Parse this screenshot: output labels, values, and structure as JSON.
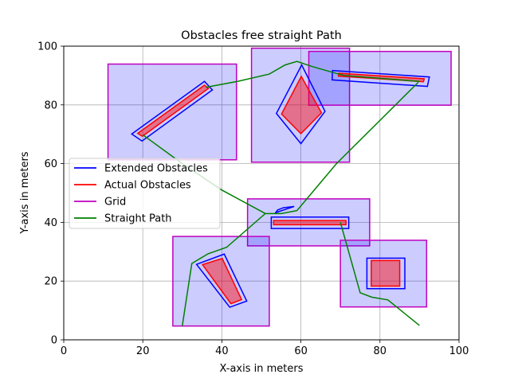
{
  "chart_data": {
    "type": "line",
    "title": "Obstacles free straight Path",
    "xlabel": "X-axis in meters",
    "ylabel": "Y-axis in meters",
    "xlim": [
      0,
      100
    ],
    "ylim": [
      0,
      100
    ],
    "xticks": [
      0,
      20,
      40,
      60,
      80,
      100
    ],
    "yticks": [
      0,
      20,
      40,
      60,
      80,
      100
    ],
    "grid": true,
    "legend_position": "center-left",
    "colors": {
      "extended": "#0000ff",
      "actual": "#ff0000",
      "grid": "#bf00bf",
      "path": "#008000",
      "grid_fill": "#0000ff",
      "actual_fill": "#ff0000"
    },
    "legend": [
      {
        "label": "Extended Obstacles",
        "color": "#0000ff"
      },
      {
        "label": "Actual Obstacles",
        "color": "#ff0000"
      },
      {
        "label": "Grid",
        "color": "#bf00bf"
      },
      {
        "label": "Straight Path",
        "color": "#008000"
      }
    ],
    "grid_cells": [
      {
        "x": [
          11.2,
          43.7
        ],
        "y": [
          61.3,
          93.9
        ]
      },
      {
        "x": [
          47.5,
          72.3
        ],
        "y": [
          60.5,
          99.3
        ]
      },
      {
        "x": [
          62.0,
          98.0
        ],
        "y": [
          79.9,
          98.2
        ]
      },
      {
        "x": [
          46.5,
          77.4
        ],
        "y": [
          32.0,
          48.0
        ]
      },
      {
        "x": [
          27.6,
          52.0
        ],
        "y": [
          4.7,
          35.2
        ]
      },
      {
        "x": [
          70.0,
          91.8
        ],
        "y": [
          11.2,
          33.9
        ]
      }
    ],
    "extended_obstacles": [
      [
        [
          17.2,
          70.1
        ],
        [
          35.6,
          88.0
        ],
        [
          37.6,
          85.1
        ],
        [
          19.8,
          67.7
        ]
      ],
      [
        [
          58.3,
          45.4
        ],
        [
          53.6,
          43.3
        ],
        [
          54.1,
          44.2
        ],
        [
          55.6,
          45.0
        ]
      ],
      [
        [
          60.2,
          93.6
        ],
        [
          53.8,
          77.1
        ],
        [
          60.0,
          66.8
        ],
        [
          66.1,
          77.8
        ]
      ],
      [
        [
          68.0,
          91.7
        ],
        [
          92.5,
          89.5
        ],
        [
          92.0,
          86.3
        ],
        [
          67.9,
          88.5
        ]
      ],
      [
        [
          52.5,
          41.8
        ],
        [
          72.1,
          41.8
        ],
        [
          72.1,
          37.9
        ],
        [
          52.5,
          37.9
        ]
      ],
      [
        [
          33.6,
          25.7
        ],
        [
          40.6,
          29.2
        ],
        [
          46.3,
          13.2
        ],
        [
          42.0,
          11.1
        ]
      ],
      [
        [
          76.7,
          27.8
        ],
        [
          86.3,
          27.8
        ],
        [
          86.3,
          17.4
        ],
        [
          76.7,
          17.4
        ]
      ]
    ],
    "actual_obstacles": [
      [
        [
          18.7,
          70.3
        ],
        [
          35.6,
          86.7
        ],
        [
          36.6,
          85.6
        ],
        [
          19.9,
          69.3
        ]
      ],
      [
        [
          60.1,
          89.7
        ],
        [
          55.1,
          76.9
        ],
        [
          60.0,
          70.2
        ],
        [
          65.2,
          77.3
        ]
      ],
      [
        [
          69.6,
          90.8
        ],
        [
          91.2,
          88.9
        ],
        [
          91.0,
          87.9
        ],
        [
          69.5,
          89.8
        ]
      ],
      [
        [
          53.1,
          40.6
        ],
        [
          71.4,
          40.6
        ],
        [
          71.4,
          39.2
        ],
        [
          53.1,
          39.2
        ]
      ],
      [
        [
          35.1,
          25.6
        ],
        [
          40.1,
          27.7
        ],
        [
          45.0,
          13.7
        ],
        [
          42.3,
          12.3
        ]
      ],
      [
        [
          77.8,
          27.0
        ],
        [
          85.0,
          27.0
        ],
        [
          85.0,
          18.3
        ],
        [
          77.8,
          18.3
        ]
      ]
    ],
    "path": {
      "x": [
        30.0,
        32.4,
        36.5,
        41.2,
        50.9,
        55.6,
        59.4,
        60.7,
        69.8,
        89.7,
        74.3,
        78.0,
        82.4,
        90.0,
        70.1,
        64.3,
        60.9,
        56.2,
        52.7,
        49.0,
        42.1,
        30.5,
        20.2
      ],
      "y": [
        4.8,
        26.0,
        29.3,
        31.5,
        43.3,
        43.3,
        45.0,
        46.7,
        57.4,
        87.7,
        16.0,
        14.5,
        13.6,
        4.9,
        40.1,
        43.4,
        45.3,
        43.2,
        43.2,
        41.5,
        45.6,
        52.7,
        69.6
      ]
    },
    "path_full": {
      "x": [
        30.0,
        32.4,
        36.5,
        41.2,
        51.0,
        55.0,
        59.3,
        68.8,
        89.7,
        74.3,
        78.0,
        82.4,
        90.0
      ],
      "y": [
        4.8,
        26.0,
        29.3,
        31.5,
        43.0,
        43.0,
        44.9,
        59.0,
        87.7,
        16.0,
        14.5,
        13.6,
        4.9
      ]
    },
    "path_upper": {
      "x": [
        20.0,
        30.0,
        40.0,
        51.0
      ],
      "y": [
        69.8,
        60.0,
        51.0,
        43.0
      ]
    },
    "path_top": {
      "x": [
        36.0,
        44.0,
        52.0,
        56.0,
        59.0,
        63.0,
        69.0,
        71.0
      ],
      "y": [
        86.0,
        88.0,
        90.5,
        93.6,
        94.8,
        93.0,
        90.7,
        90.0
      ]
    },
    "path_right": {
      "x": [
        71.0,
        90.0
      ],
      "y": [
        90.0,
        88.0
      ]
    },
    "path_low": {
      "x": [
        59.0,
        69.0,
        89.7
      ],
      "y": [
        44.0,
        60.0,
        87.7
      ]
    },
    "path_bottom": {
      "x": [
        70.0,
        75.0,
        78.0,
        82.0,
        90.0
      ],
      "y": [
        40.0,
        16.0,
        14.5,
        13.6,
        4.9
      ]
    }
  }
}
